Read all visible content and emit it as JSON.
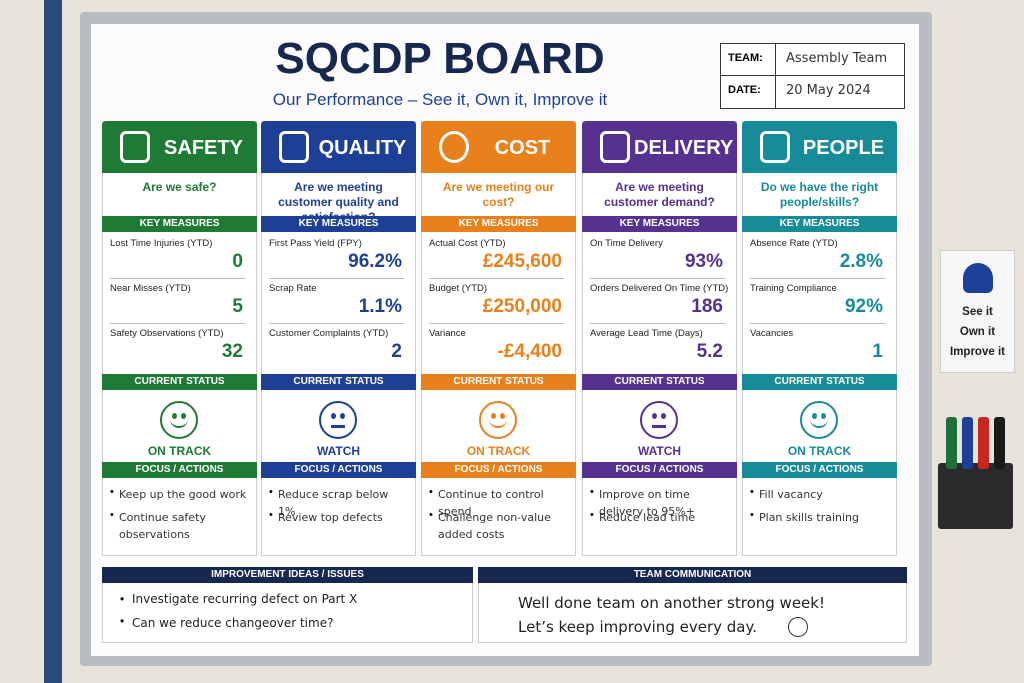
{
  "header": {
    "title": "SQCDP BOARD",
    "subtitle": "Our Performance – See it, Own it, Improve it",
    "team_label": "TEAM:",
    "team": "Assembly Team",
    "date_label": "DATE:",
    "date": "20 May 2024"
  },
  "columns": [
    {
      "name": "SAFETY",
      "color": "#1f7a36",
      "question": "Are we safe?",
      "measures_label": "KEY MEASURES",
      "measures": [
        {
          "label": "Lost Time Injuries (YTD)",
          "value": "0"
        },
        {
          "label": "Near Misses (YTD)",
          "value": "5"
        },
        {
          "label": "Safety Observations (YTD)",
          "value": "32"
        }
      ],
      "status_label": "CURRENT STATUS",
      "status": "ON TRACK",
      "actions_label": "FOCUS / ACTIONS",
      "actions": [
        "Keep up the good work",
        "Continue safety observations"
      ]
    },
    {
      "name": "QUALITY",
      "color": "#1d3f96",
      "question": "Are we meeting customer quality and satisfaction?",
      "measures_label": "KEY MEASURES",
      "measures": [
        {
          "label": "First Pass Yield (FPY)",
          "value": "96.2%"
        },
        {
          "label": "Scrap Rate",
          "value": "1.1%"
        },
        {
          "label": "Customer Complaints (YTD)",
          "value": "2"
        }
      ],
      "status_label": "CURRENT STATUS",
      "status": "WATCH",
      "actions_label": "FOCUS / ACTIONS",
      "actions": [
        "Reduce scrap below 1%",
        "Review top defects"
      ]
    },
    {
      "name": "COST",
      "color": "#e8801b",
      "question": "Are we meeting our cost?",
      "measures_label": "KEY MEASURES",
      "measures": [
        {
          "label": "Actual Cost (YTD)",
          "value": "£245,600"
        },
        {
          "label": "Budget (YTD)",
          "value": "£250,000"
        },
        {
          "label": "Variance",
          "value": "-£4,400"
        }
      ],
      "status_label": "CURRENT STATUS",
      "status": "ON TRACK",
      "actions_label": "FOCUS / ACTIONS",
      "actions": [
        "Continue to control spend",
        "Challenge non-value added costs"
      ]
    },
    {
      "name": "DELIVERY",
      "color": "#553190",
      "question": "Are we meeting customer demand?",
      "measures_label": "KEY MEASURES",
      "measures": [
        {
          "label": "On Time Delivery",
          "value": "93%"
        },
        {
          "label": "Orders Delivered On Time (YTD)",
          "value": "186"
        },
        {
          "label": "Average Lead Time (Days)",
          "value": "5.2"
        }
      ],
      "status_label": "CURRENT STATUS",
      "status": "WATCH",
      "actions_label": "FOCUS / ACTIONS",
      "actions": [
        "Improve on time delivery to 95%+",
        "Reduce lead time"
      ]
    },
    {
      "name": "PEOPLE",
      "color": "#178b97",
      "question": "Do we have the right people/skills?",
      "measures_label": "KEY MEASURES",
      "measures": [
        {
          "label": "Absence Rate (YTD)",
          "value": "2.8%"
        },
        {
          "label": "Training Compliance",
          "value": "92%"
        },
        {
          "label": "Vacancies",
          "value": "1"
        }
      ],
      "status_label": "CURRENT STATUS",
      "status": "ON TRACK",
      "actions_label": "FOCUS / ACTIONS",
      "actions": [
        "Fill vacancy",
        "Plan skills training"
      ]
    }
  ],
  "improvement": {
    "title": "IMPROVEMENT IDEAS / ISSUES",
    "items": [
      "Investigate recurring defect on Part X",
      "Can we reduce changeover time?"
    ]
  },
  "communication": {
    "title": "TEAM COMMUNICATION",
    "lines": [
      "Well done team on another strong week!",
      "Let’s keep improving every day."
    ]
  },
  "side_card": {
    "lines": [
      "See it",
      "Own it",
      "Improve it"
    ]
  }
}
